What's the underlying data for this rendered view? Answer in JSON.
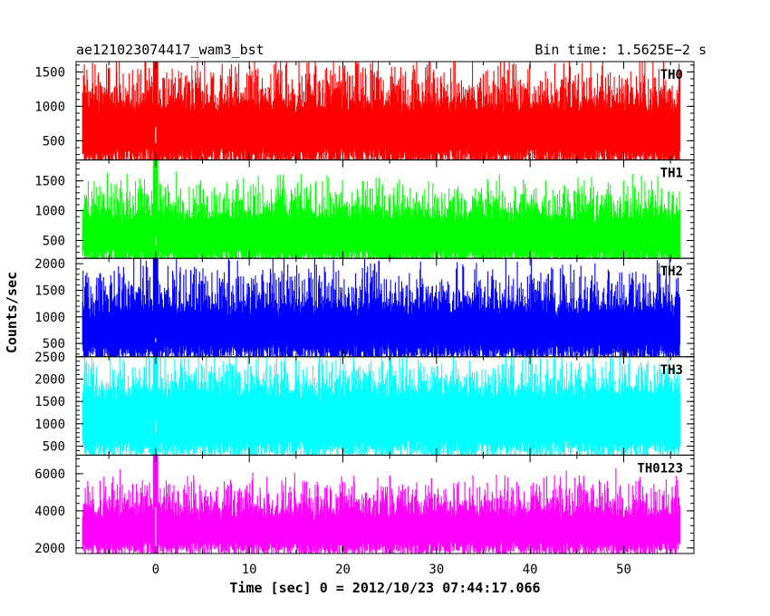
{
  "chart_data": {
    "type": "line",
    "title_left": "ae121023074417_wam3_bst",
    "title_right": "Bin time: 1.5625E−2 s",
    "xlabel": "Time [sec] 0 = 2012/10/23 07:44:17.066",
    "ylabel": "Counts/sec",
    "xlim": [
      -8.5,
      57.5
    ],
    "x_ticks": [
      0,
      10,
      20,
      30,
      40,
      50
    ],
    "x_tick_labels": [
      "0",
      "10",
      "20",
      "30",
      "40",
      "50"
    ],
    "x_data_range": [
      -7.8,
      56.0
    ],
    "panels": [
      {
        "name": "TH0",
        "color": "#ff0000",
        "ylim": [
          220,
          1650
        ],
        "y_ticks": [
          500,
          1000,
          1500
        ],
        "y_tick_labels": [
          "500",
          "1000",
          "1500"
        ],
        "baseline": 850,
        "low_envelope": 120,
        "high_envelope": 1650,
        "burst_time": 0.0,
        "burst_peak": 1650,
        "burst_low": 700
      },
      {
        "name": "TH1",
        "color": "#00ff00",
        "ylim": [
          200,
          1850
        ],
        "y_ticks": [
          500,
          1000,
          1500
        ],
        "y_tick_labels": [
          "500",
          "1000",
          "1500"
        ],
        "baseline": 750,
        "low_envelope": 100,
        "high_envelope": 1500,
        "burst_time": 0.0,
        "burst_peak": 1850,
        "burst_low": 550
      },
      {
        "name": "TH2",
        "color": "#0000ff",
        "ylim": [
          250,
          2100
        ],
        "y_ticks": [
          500,
          1000,
          1500,
          2000
        ],
        "y_tick_labels": [
          "500",
          "1000",
          "1500",
          "2000"
        ],
        "baseline": 950,
        "low_envelope": 150,
        "high_envelope": 2000,
        "burst_time": 0.0,
        "burst_peak": 2100,
        "burst_low": 600
      },
      {
        "name": "TH3",
        "color": "#00ffff",
        "ylim": [
          300,
          2500
        ],
        "y_ticks": [
          500,
          1000,
          1500,
          2000,
          2500
        ],
        "y_tick_labels": [
          "500",
          "1000",
          "1500",
          "2000",
          "2500"
        ],
        "baseline": 1450,
        "low_envelope": 250,
        "high_envelope": 2500,
        "burst_time": 0.0,
        "burst_peak": 2500,
        "burst_low": 1050
      },
      {
        "name": "TH0123",
        "color": "#ff00ff",
        "ylim": [
          1700,
          7000
        ],
        "y_ticks": [
          2000,
          4000,
          6000
        ],
        "y_tick_labels": [
          "2000",
          "4000",
          "6000"
        ],
        "baseline": 3400,
        "low_envelope": 1600,
        "high_envelope": 5800,
        "burst_time": 0.0,
        "burst_peak": 7000,
        "burst_low": 4200
      }
    ],
    "grid": false,
    "legend": "none"
  }
}
